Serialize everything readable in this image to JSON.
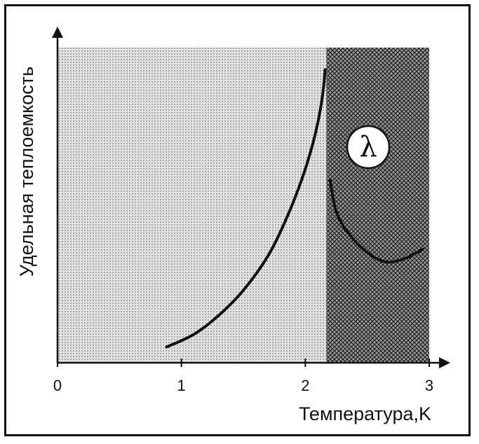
{
  "chart_data": {
    "type": "line",
    "xlabel": "Температура,K",
    "ylabel": "Удельная теплоемкость",
    "xlim": [
      0,
      3
    ],
    "x_ticks": [
      "0",
      "1",
      "2",
      "3"
    ],
    "lambda_point": 2.17,
    "region_marker": "λ",
    "series": [
      {
        "values": [
          {
            "x": 0.88,
            "y": 0.05
          },
          {
            "x": 1.1,
            "y": 0.09
          },
          {
            "x": 1.3,
            "y": 0.15
          },
          {
            "x": 1.5,
            "y": 0.23
          },
          {
            "x": 1.7,
            "y": 0.34
          },
          {
            "x": 1.85,
            "y": 0.46
          },
          {
            "x": 1.97,
            "y": 0.58
          },
          {
            "x": 2.05,
            "y": 0.68
          },
          {
            "x": 2.1,
            "y": 0.76
          },
          {
            "x": 2.14,
            "y": 0.85
          },
          {
            "x": 2.16,
            "y": 0.93
          }
        ]
      },
      {
        "values": [
          {
            "x": 2.2,
            "y": 0.58
          },
          {
            "x": 2.25,
            "y": 0.48
          },
          {
            "x": 2.35,
            "y": 0.41
          },
          {
            "x": 2.5,
            "y": 0.35
          },
          {
            "x": 2.65,
            "y": 0.32
          },
          {
            "x": 2.8,
            "y": 0.33
          },
          {
            "x": 2.9,
            "y": 0.35
          },
          {
            "x": 2.95,
            "y": 0.36
          }
        ]
      }
    ],
    "colors": {
      "region_light": "#d7d7d7",
      "region_dark": "#6e6e6e",
      "line": "#111111"
    }
  }
}
